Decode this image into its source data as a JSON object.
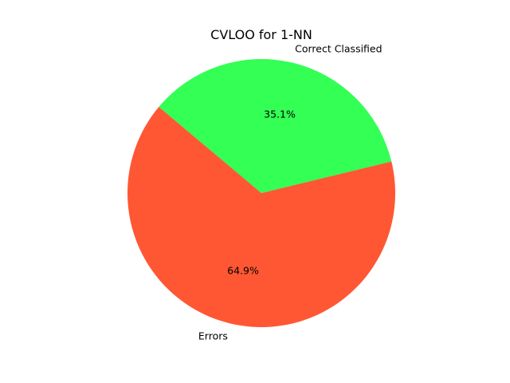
{
  "chart_data": {
    "type": "pie",
    "title": "CVLOO for 1-NN",
    "slices": [
      {
        "label": "Correct Classified",
        "value": 35.1,
        "pct_label": "35.1%",
        "color": "#33ff55"
      },
      {
        "label": "Errors",
        "value": 64.9,
        "pct_label": "64.9%",
        "color": "#ff5733"
      }
    ]
  }
}
